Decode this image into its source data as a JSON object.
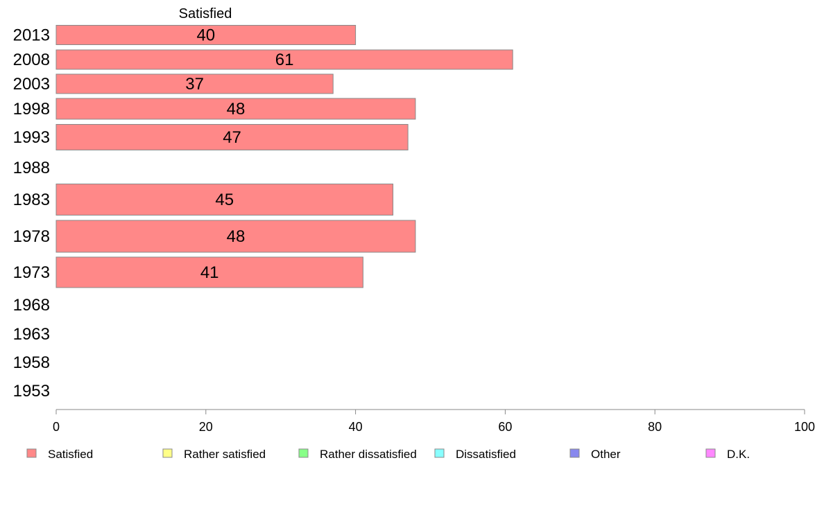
{
  "chart_data": {
    "type": "bar",
    "orientation": "horizontal",
    "categories": [
      "2013",
      "2008",
      "2003",
      "1998",
      "1993",
      "1988",
      "1983",
      "1978",
      "1973",
      "1968",
      "1963",
      "1958",
      "1953"
    ],
    "series": [
      {
        "name": "Satisfied",
        "values": [
          40,
          61,
          37,
          48,
          47,
          null,
          45,
          48,
          41,
          null,
          null,
          null,
          null
        ]
      }
    ],
    "series_header": "Satisfied",
    "xlim": [
      0,
      100
    ],
    "xticks": [
      0,
      20,
      40,
      60,
      80,
      100
    ],
    "grid": false,
    "legend_position": "bottom",
    "legend": [
      {
        "label": "Satisfied",
        "color": "#ff8888"
      },
      {
        "label": "Rather satisfied",
        "color": "#ffff88"
      },
      {
        "label": "Rather dissatisfied",
        "color": "#88ff88"
      },
      {
        "label": "Dissatisfied",
        "color": "#88ffff"
      },
      {
        "label": "Other",
        "color": "#8888ee"
      },
      {
        "label": "D.K.",
        "color": "#ff88ff"
      }
    ],
    "bar_color": "#ff8888"
  }
}
